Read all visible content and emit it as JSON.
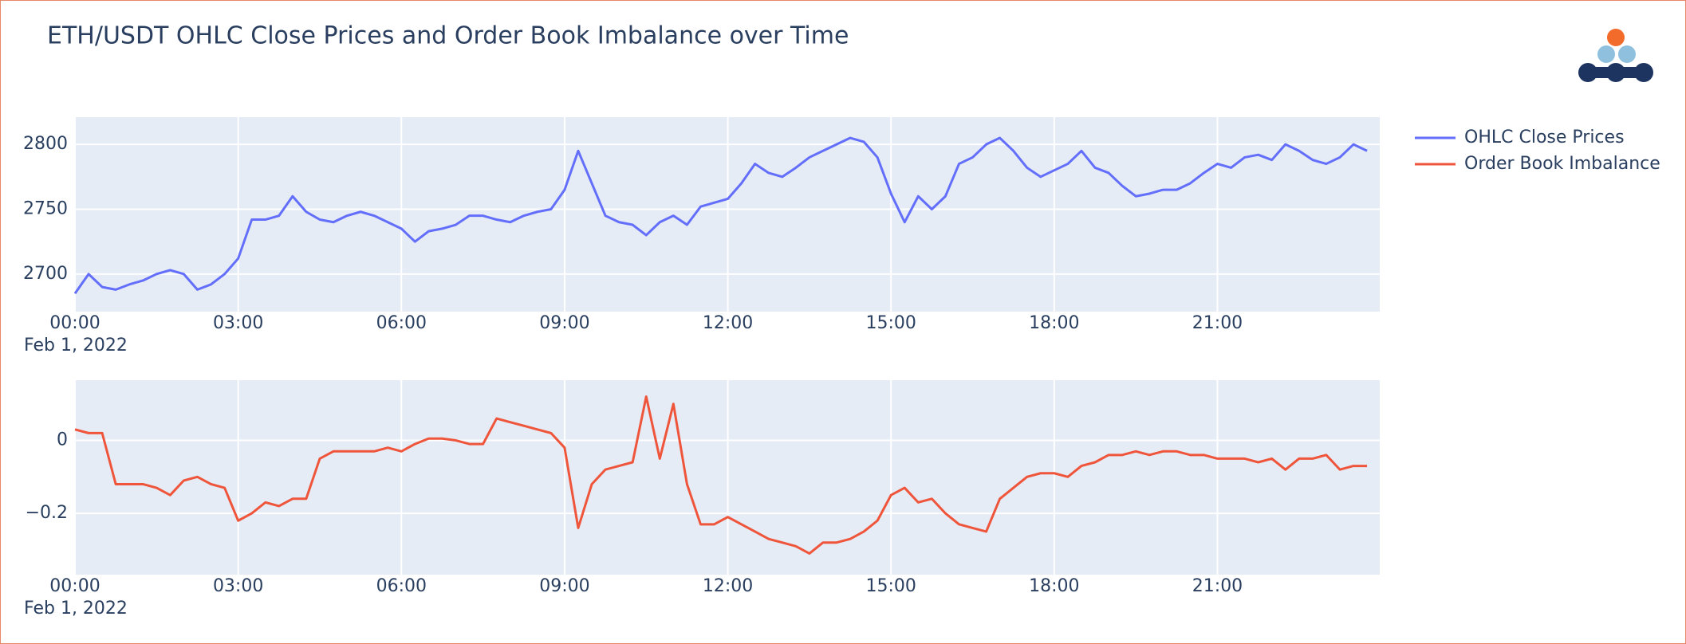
{
  "chart_data": [
    {
      "type": "line",
      "title": "ETH/USDT OHLC Close Prices and Order Book Imbalance over Time",
      "legend": "outside-right",
      "grid": true,
      "x_date_label": "Feb 1, 2022",
      "xlim": [
        "2022-02-01T00:00",
        "2022-02-01T23:59"
      ],
      "xticks": [
        {
          "value": "2022-02-01T00:00",
          "label": "00:00"
        },
        {
          "value": "2022-02-01T03:00",
          "label": "03:00"
        },
        {
          "value": "2022-02-01T06:00",
          "label": "06:00"
        },
        {
          "value": "2022-02-01T09:00",
          "label": "09:00"
        },
        {
          "value": "2022-02-01T12:00",
          "label": "12:00"
        },
        {
          "value": "2022-02-01T15:00",
          "label": "15:00"
        },
        {
          "value": "2022-02-01T18:00",
          "label": "18:00"
        },
        {
          "value": "2022-02-01T21:00",
          "label": "21:00"
        }
      ],
      "ylim": [
        2671,
        2821
      ],
      "yticks": [
        2700,
        2750,
        2800
      ],
      "x": [
        "2022-02-01T00:00",
        "2022-02-01T00:15",
        "2022-02-01T00:30",
        "2022-02-01T00:45",
        "2022-02-01T01:00",
        "2022-02-01T01:15",
        "2022-02-01T01:30",
        "2022-02-01T01:45",
        "2022-02-01T02:00",
        "2022-02-01T02:15",
        "2022-02-01T02:30",
        "2022-02-01T02:45",
        "2022-02-01T03:00",
        "2022-02-01T03:15",
        "2022-02-01T03:30",
        "2022-02-01T03:45",
        "2022-02-01T04:00",
        "2022-02-01T04:15",
        "2022-02-01T04:30",
        "2022-02-01T04:45",
        "2022-02-01T05:00",
        "2022-02-01T05:15",
        "2022-02-01T05:30",
        "2022-02-01T05:45",
        "2022-02-01T06:00",
        "2022-02-01T06:15",
        "2022-02-01T06:30",
        "2022-02-01T06:45",
        "2022-02-01T07:00",
        "2022-02-01T07:15",
        "2022-02-01T07:30",
        "2022-02-01T07:45",
        "2022-02-01T08:00",
        "2022-02-01T08:15",
        "2022-02-01T08:30",
        "2022-02-01T08:45",
        "2022-02-01T09:00",
        "2022-02-01T09:15",
        "2022-02-01T09:30",
        "2022-02-01T09:45",
        "2022-02-01T10:00",
        "2022-02-01T10:15",
        "2022-02-01T10:30",
        "2022-02-01T10:45",
        "2022-02-01T11:00",
        "2022-02-01T11:15",
        "2022-02-01T11:30",
        "2022-02-01T11:45",
        "2022-02-01T12:00",
        "2022-02-01T12:15",
        "2022-02-01T12:30",
        "2022-02-01T12:45",
        "2022-02-01T13:00",
        "2022-02-01T13:15",
        "2022-02-01T13:30",
        "2022-02-01T13:45",
        "2022-02-01T14:00",
        "2022-02-01T14:15",
        "2022-02-01T14:30",
        "2022-02-01T14:45",
        "2022-02-01T15:00",
        "2022-02-01T15:15",
        "2022-02-01T15:30",
        "2022-02-01T15:45",
        "2022-02-01T16:00",
        "2022-02-01T16:15",
        "2022-02-01T16:30",
        "2022-02-01T16:45",
        "2022-02-01T17:00",
        "2022-02-01T17:15",
        "2022-02-01T17:30",
        "2022-02-01T17:45",
        "2022-02-01T18:00",
        "2022-02-01T18:15",
        "2022-02-01T18:30",
        "2022-02-01T18:45",
        "2022-02-01T19:00",
        "2022-02-01T19:15",
        "2022-02-01T19:30",
        "2022-02-01T19:45",
        "2022-02-01T20:00",
        "2022-02-01T20:15",
        "2022-02-01T20:30",
        "2022-02-01T20:45",
        "2022-02-01T21:00",
        "2022-02-01T21:15",
        "2022-02-01T21:30",
        "2022-02-01T21:45",
        "2022-02-01T22:00",
        "2022-02-01T22:15",
        "2022-02-01T22:30",
        "2022-02-01T22:45",
        "2022-02-01T23:00",
        "2022-02-01T23:15",
        "2022-02-01T23:30",
        "2022-02-01T23:45"
      ],
      "series": [
        {
          "name": "OHLC Close Prices",
          "color": "#636efa",
          "values": [
            2685,
            2700,
            2690,
            2688,
            2692,
            2695,
            2700,
            2703,
            2700,
            2688,
            2692,
            2700,
            2712,
            2742,
            2742,
            2745,
            2760,
            2748,
            2742,
            2740,
            2745,
            2748,
            2745,
            2740,
            2735,
            2725,
            2733,
            2735,
            2738,
            2745,
            2745,
            2742,
            2740,
            2745,
            2748,
            2750,
            2765,
            2795,
            2770,
            2745,
            2740,
            2738,
            2730,
            2740,
            2745,
            2738,
            2752,
            2755,
            2758,
            2770,
            2785,
            2778,
            2775,
            2782,
            2790,
            2795,
            2800,
            2805,
            2802,
            2790,
            2762,
            2740,
            2760,
            2750,
            2760,
            2785,
            2790,
            2800,
            2805,
            2795,
            2782,
            2775,
            2780,
            2785,
            2795,
            2782,
            2778,
            2768,
            2760,
            2762,
            2765,
            2765,
            2770,
            2778,
            2785,
            2782,
            2790,
            2792,
            2788,
            2800,
            2795,
            2788,
            2785,
            2790,
            2800,
            2795
          ]
        }
      ]
    },
    {
      "type": "line",
      "grid": true,
      "x_date_label": "Feb 1, 2022",
      "xlim": [
        "2022-02-01T00:00",
        "2022-02-01T23:59"
      ],
      "xticks": [
        {
          "value": "2022-02-01T00:00",
          "label": "00:00"
        },
        {
          "value": "2022-02-01T03:00",
          "label": "03:00"
        },
        {
          "value": "2022-02-01T06:00",
          "label": "06:00"
        },
        {
          "value": "2022-02-01T09:00",
          "label": "09:00"
        },
        {
          "value": "2022-02-01T12:00",
          "label": "12:00"
        },
        {
          "value": "2022-02-01T15:00",
          "label": "15:00"
        },
        {
          "value": "2022-02-01T18:00",
          "label": "18:00"
        },
        {
          "value": "2022-02-01T21:00",
          "label": "21:00"
        }
      ],
      "ylim": [
        -0.368,
        0.165
      ],
      "yticks": [
        {
          "value": -0.2,
          "label": "−0.2"
        },
        0
      ],
      "x": [
        "2022-02-01T00:00",
        "2022-02-01T00:15",
        "2022-02-01T00:30",
        "2022-02-01T00:45",
        "2022-02-01T01:00",
        "2022-02-01T01:15",
        "2022-02-01T01:30",
        "2022-02-01T01:45",
        "2022-02-01T02:00",
        "2022-02-01T02:15",
        "2022-02-01T02:30",
        "2022-02-01T02:45",
        "2022-02-01T03:00",
        "2022-02-01T03:15",
        "2022-02-01T03:30",
        "2022-02-01T03:45",
        "2022-02-01T04:00",
        "2022-02-01T04:15",
        "2022-02-01T04:30",
        "2022-02-01T04:45",
        "2022-02-01T05:00",
        "2022-02-01T05:15",
        "2022-02-01T05:30",
        "2022-02-01T05:45",
        "2022-02-01T06:00",
        "2022-02-01T06:15",
        "2022-02-01T06:30",
        "2022-02-01T06:45",
        "2022-02-01T07:00",
        "2022-02-01T07:15",
        "2022-02-01T07:30",
        "2022-02-01T07:45",
        "2022-02-01T08:00",
        "2022-02-01T08:15",
        "2022-02-01T08:30",
        "2022-02-01T08:45",
        "2022-02-01T09:00",
        "2022-02-01T09:15",
        "2022-02-01T09:30",
        "2022-02-01T09:45",
        "2022-02-01T10:00",
        "2022-02-01T10:15",
        "2022-02-01T10:30",
        "2022-02-01T10:45",
        "2022-02-01T11:00",
        "2022-02-01T11:15",
        "2022-02-01T11:30",
        "2022-02-01T11:45",
        "2022-02-01T12:00",
        "2022-02-01T12:15",
        "2022-02-01T12:30",
        "2022-02-01T12:45",
        "2022-02-01T13:00",
        "2022-02-01T13:15",
        "2022-02-01T13:30",
        "2022-02-01T13:45",
        "2022-02-01T14:00",
        "2022-02-01T14:15",
        "2022-02-01T14:30",
        "2022-02-01T14:45",
        "2022-02-01T15:00",
        "2022-02-01T15:15",
        "2022-02-01T15:30",
        "2022-02-01T15:45",
        "2022-02-01T16:00",
        "2022-02-01T16:15",
        "2022-02-01T16:30",
        "2022-02-01T16:45",
        "2022-02-01T17:00",
        "2022-02-01T17:15",
        "2022-02-01T17:30",
        "2022-02-01T17:45",
        "2022-02-01T18:00",
        "2022-02-01T18:15",
        "2022-02-01T18:30",
        "2022-02-01T18:45",
        "2022-02-01T19:00",
        "2022-02-01T19:15",
        "2022-02-01T19:30",
        "2022-02-01T19:45",
        "2022-02-01T20:00",
        "2022-02-01T20:15",
        "2022-02-01T20:30",
        "2022-02-01T20:45",
        "2022-02-01T21:00",
        "2022-02-01T21:15",
        "2022-02-01T21:30",
        "2022-02-01T21:45",
        "2022-02-01T22:00",
        "2022-02-01T22:15",
        "2022-02-01T22:30",
        "2022-02-01T22:45",
        "2022-02-01T23:00",
        "2022-02-01T23:15",
        "2022-02-01T23:30",
        "2022-02-01T23:45"
      ],
      "series": [
        {
          "name": "Order Book Imbalance",
          "color": "#ef553b",
          "values": [
            0.03,
            0.02,
            0.02,
            -0.12,
            -0.12,
            -0.12,
            -0.13,
            -0.15,
            -0.11,
            -0.1,
            -0.12,
            -0.13,
            -0.22,
            -0.2,
            -0.17,
            -0.18,
            -0.16,
            -0.16,
            -0.05,
            -0.03,
            -0.03,
            -0.03,
            -0.03,
            -0.02,
            -0.03,
            -0.01,
            0.005,
            0.005,
            0.0,
            -0.01,
            -0.01,
            0.06,
            0.05,
            0.04,
            0.03,
            0.02,
            -0.02,
            -0.24,
            -0.12,
            -0.08,
            -0.07,
            -0.06,
            0.12,
            -0.05,
            0.1,
            -0.12,
            -0.23,
            -0.23,
            -0.21,
            -0.23,
            -0.25,
            -0.27,
            -0.28,
            -0.29,
            -0.31,
            -0.28,
            -0.28,
            -0.27,
            -0.25,
            -0.22,
            -0.15,
            -0.13,
            -0.17,
            -0.16,
            -0.2,
            -0.23,
            -0.24,
            -0.25,
            -0.16,
            -0.13,
            -0.1,
            -0.09,
            -0.09,
            -0.1,
            -0.07,
            -0.06,
            -0.04,
            -0.04,
            -0.03,
            -0.04,
            -0.03,
            -0.03,
            -0.04,
            -0.04,
            -0.05,
            -0.05,
            -0.05,
            -0.06,
            -0.05,
            -0.08,
            -0.05,
            -0.05,
            -0.04,
            -0.08,
            -0.07,
            -0.07
          ]
        }
      ]
    }
  ]
}
